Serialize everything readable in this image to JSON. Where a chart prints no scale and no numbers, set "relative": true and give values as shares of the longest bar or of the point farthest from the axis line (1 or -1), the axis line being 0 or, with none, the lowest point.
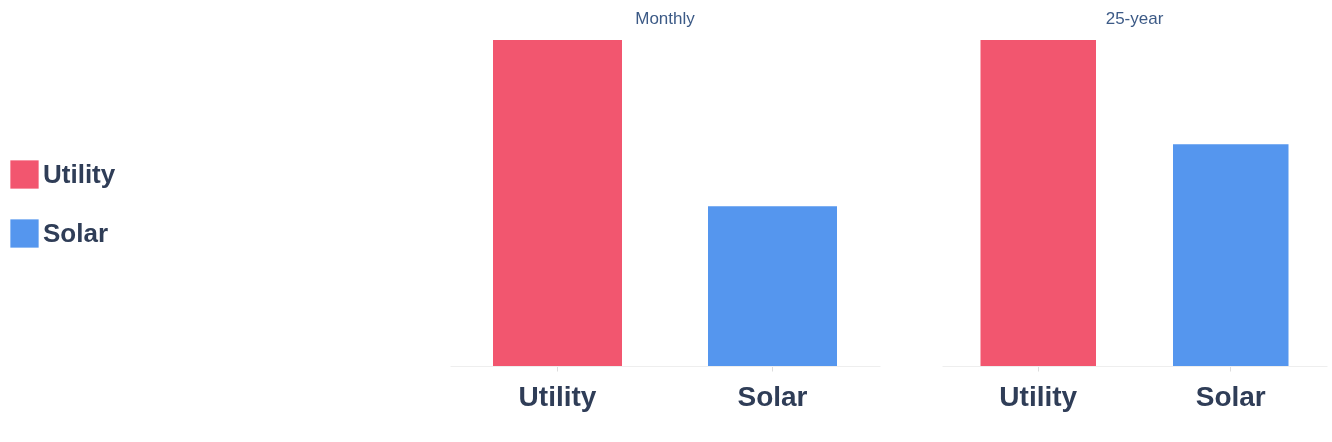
{
  "chart_data": [
    {
      "type": "bar",
      "title": "Monthly",
      "categories": [
        "Utility",
        "Solar"
      ],
      "relative": true,
      "legend": "left",
      "series": [
        {
          "name": "Utility",
          "color": "#f2566f",
          "values": [
            1,
            null
          ]
        },
        {
          "name": "Solar",
          "color": "#5596ee",
          "values": [
            null,
            0.49
          ]
        }
      ]
    },
    {
      "type": "bar",
      "title": "25-year",
      "categories": [
        "Utility",
        "Solar"
      ],
      "relative": true,
      "series": [
        {
          "color": "#f2566f",
          "values": [
            1,
            null
          ]
        },
        {
          "color": "#5596ee",
          "values": [
            null,
            0.68
          ]
        }
      ]
    }
  ]
}
